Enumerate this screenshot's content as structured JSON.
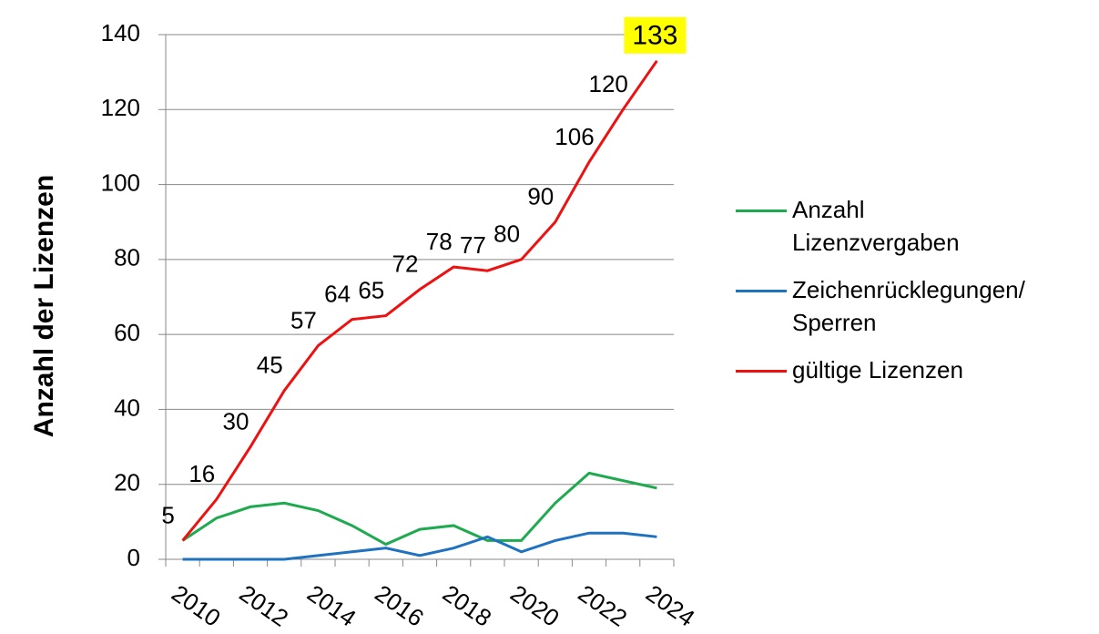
{
  "chart_data": {
    "type": "line",
    "y_label": "Anzahl der Lizenzen",
    "categories": [
      "2010",
      null,
      "2012",
      null,
      "2014",
      null,
      "2016",
      null,
      "2018",
      null,
      "2020",
      null,
      "2022",
      null,
      "2024"
    ],
    "series": [
      {
        "name": "Anzahl Lizenzvergaben",
        "color": "#1faa4f",
        "values": [
          5,
          11,
          14,
          15,
          13,
          9,
          4,
          8,
          9,
          5,
          5,
          15,
          23,
          21,
          19
        ]
      },
      {
        "name": "Zeichenrücklegungen/ Sperren",
        "color": "#1f72c0",
        "values": [
          0,
          0,
          0,
          0,
          1,
          2,
          3,
          1,
          3,
          6,
          2,
          5,
          7,
          7,
          6
        ]
      },
      {
        "name": "gültige Lizenzen",
        "color": "#ee1111",
        "values": [
          5,
          16,
          30,
          45,
          57,
          64,
          65,
          72,
          78,
          77,
          80,
          90,
          106,
          120,
          133
        ],
        "data_labels": true
      }
    ],
    "highlight": {
      "series": 2,
      "index": 14,
      "color": "#ffff00"
    },
    "ylim": [
      0,
      140
    ],
    "yticks": [
      0,
      20,
      40,
      60,
      80,
      100,
      120,
      140
    ],
    "grid": true,
    "legend": "right"
  }
}
